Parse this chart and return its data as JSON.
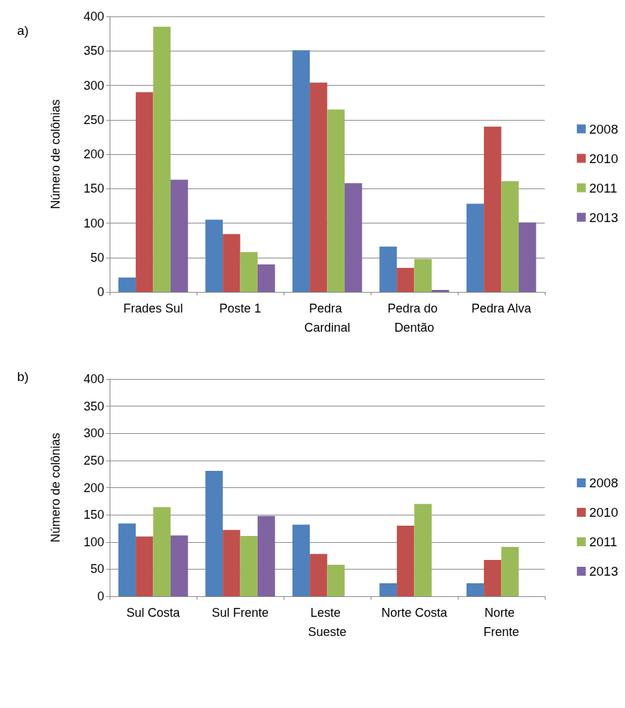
{
  "chart_data": [
    {
      "type": "bar",
      "ylabel": "Número de colônias",
      "annotations": [
        "a)"
      ],
      "categories": [
        "Frades Sul",
        "Poste 1",
        "Pedra Cardinal",
        "Pedra do Dentão",
        "Pedra Alva"
      ],
      "series": [
        {
          "name": "2008",
          "color": "#4f81bd",
          "values": [
            21,
            105,
            351,
            66,
            128
          ]
        },
        {
          "name": "2010",
          "color": "#c0504d",
          "values": [
            290,
            84,
            304,
            35,
            240
          ]
        },
        {
          "name": "2011",
          "color": "#9bbb59",
          "values": [
            385,
            58,
            265,
            48,
            161
          ]
        },
        {
          "name": "2013",
          "color": "#8064a2",
          "values": [
            163,
            40,
            158,
            3,
            101
          ]
        }
      ],
      "ylim": [
        0,
        400
      ],
      "yticks": [
        0,
        50,
        100,
        150,
        200,
        250,
        300,
        350,
        400
      ],
      "grid": "y",
      "legend": "right"
    },
    {
      "type": "bar",
      "ylabel": "Número de colônias",
      "annotations": [
        "b)"
      ],
      "categories": [
        "Sul Costa",
        "Sul Frente",
        "Leste Sueste",
        "Norte Costa",
        "Norte Frente"
      ],
      "series": [
        {
          "name": "2008",
          "color": "#4f81bd",
          "values": [
            134,
            231,
            132,
            24,
            24
          ]
        },
        {
          "name": "2010",
          "color": "#c0504d",
          "values": [
            110,
            122,
            78,
            130,
            67
          ]
        },
        {
          "name": "2011",
          "color": "#9bbb59",
          "values": [
            164,
            111,
            58,
            170,
            91
          ]
        },
        {
          "name": "2013",
          "color": "#8064a2",
          "values": [
            112,
            148,
            null,
            null,
            null
          ]
        }
      ],
      "ylim": [
        0,
        400
      ],
      "yticks": [
        0,
        50,
        100,
        150,
        200,
        250,
        300,
        350,
        400
      ],
      "grid": "y",
      "legend": "right"
    }
  ]
}
